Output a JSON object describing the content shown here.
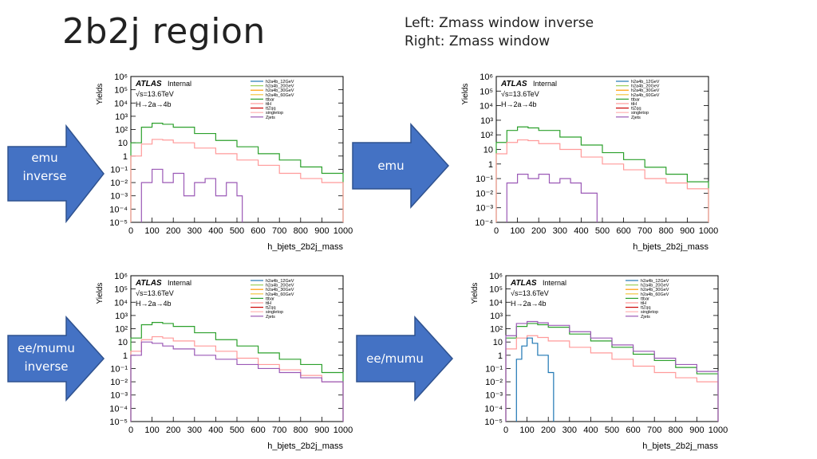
{
  "slide": {
    "title": "2b2j region",
    "note_line1": "Left: Zmass window inverse",
    "note_line2": "Right: Zmass window"
  },
  "arrows": {
    "emu_inverse": [
      "emu",
      "inverse"
    ],
    "emu": [
      "emu"
    ],
    "eemumu_inverse": [
      "ee/mumu",
      "inverse"
    ],
    "eemumu": [
      "ee/mumu"
    ]
  },
  "colors": {
    "arrow_fill": "#4472c4",
    "arrow_stroke": "#2f528f",
    "h2a4b_12GeV": "#1f77b4",
    "h2a4b_20GeV": "#9ccf5a",
    "h2a4b_30GeV": "#ff9900",
    "h2a4b_60GeV": "#f4c542",
    "ttbar": "#2ca02c",
    "ttH": "#ff9a9a",
    "ttZqq": "#cc0000",
    "singletop": "#ffb3b3",
    "Zjets": "#9b59b6"
  },
  "chart_common": {
    "atlas_label": "ATLAS",
    "internal_label": "Internal",
    "energy_label": "√s=13.6TeV",
    "process_label": "H→2a→4b",
    "ylabel": "Yields",
    "xlabel": "h_bjets_2b2j_mass",
    "xticks": [
      "0",
      "100",
      "200",
      "300",
      "400",
      "500",
      "600",
      "700",
      "800",
      "900",
      "1000"
    ],
    "yticks": [
      "10⁻⁵",
      "10⁻⁴",
      "10⁻³",
      "10⁻²",
      "10⁻¹",
      "1",
      "10",
      "10²",
      "10³",
      "10⁴",
      "10⁵",
      "10⁶"
    ],
    "legend": [
      "h2a4b_12GeV",
      "h2a4b_20GeV",
      "h2a4b_30GeV",
      "h2a4b_60GeV",
      "ttbar",
      "ttH",
      "ttZqq",
      "singletop",
      "Zjets"
    ]
  },
  "chart_data": [
    {
      "type": "line",
      "panel": "emu inverse",
      "xlim": [
        0,
        1000
      ],
      "ylim": [
        1e-05,
        1000000.0
      ],
      "log_y": true,
      "xlabel": "h_bjets_2b2j_mass",
      "ylabel": "Yields",
      "series": [
        {
          "name": "ttbar",
          "x": [
            0,
            50,
            100,
            150,
            200,
            300,
            400,
            500,
            600,
            700,
            800,
            900,
            1000
          ],
          "y": [
            10,
            150,
            300,
            250,
            150,
            50,
            15,
            5,
            1.5,
            0.5,
            0.15,
            0.05,
            0.01
          ]
        },
        {
          "name": "ttH",
          "x": [
            0,
            50,
            100,
            150,
            200,
            300,
            400,
            500,
            600,
            700,
            800,
            900,
            1000
          ],
          "y": [
            1,
            8,
            18,
            16,
            10,
            4,
            1.5,
            0.5,
            0.2,
            0.05,
            0.02,
            0.01,
            0.005
          ]
        },
        {
          "name": "Zjets",
          "x": [
            50,
            100,
            150,
            200,
            250,
            300,
            350,
            400,
            450,
            500
          ],
          "y": [
            0.01,
            0.1,
            0.01,
            0.05,
            0.001,
            0.01,
            0.02,
            0.001,
            0.01,
            0.001
          ]
        }
      ]
    },
    {
      "type": "line",
      "panel": "emu",
      "xlim": [
        0,
        1000
      ],
      "ylim": [
        0.0001,
        1000000.0
      ],
      "log_y": true,
      "xlabel": "h_bjets_2b2j_mass",
      "ylabel": "Yields",
      "series": [
        {
          "name": "ttbar",
          "x": [
            0,
            50,
            100,
            150,
            200,
            300,
            400,
            500,
            600,
            700,
            800,
            900,
            1000
          ],
          "y": [
            30,
            200,
            350,
            300,
            200,
            70,
            20,
            6,
            2,
            0.6,
            0.2,
            0.06,
            0.02
          ]
        },
        {
          "name": "ttH",
          "x": [
            0,
            50,
            100,
            150,
            200,
            300,
            400,
            500,
            600,
            700,
            800,
            900,
            1000
          ],
          "y": [
            5,
            30,
            45,
            40,
            25,
            10,
            3,
            1,
            0.4,
            0.1,
            0.05,
            0.02,
            0.01
          ]
        },
        {
          "name": "Zjets",
          "x": [
            50,
            100,
            150,
            200,
            250,
            300,
            350,
            400,
            450
          ],
          "y": [
            0.05,
            0.2,
            0.1,
            0.2,
            0.05,
            0.1,
            0.05,
            0.01,
            0.01
          ]
        }
      ]
    },
    {
      "type": "line",
      "panel": "ee/mumu inverse",
      "xlim": [
        0,
        1000
      ],
      "ylim": [
        1e-05,
        1000000.0
      ],
      "log_y": true,
      "xlabel": "h_bjets_2b2j_mass",
      "ylabel": "Yields",
      "series": [
        {
          "name": "ttbar",
          "x": [
            0,
            50,
            100,
            150,
            200,
            300,
            400,
            500,
            600,
            700,
            800,
            900,
            1000
          ],
          "y": [
            20,
            200,
            300,
            250,
            150,
            50,
            15,
            5,
            1.5,
            0.5,
            0.2,
            0.05,
            0.02
          ]
        },
        {
          "name": "ttH",
          "x": [
            0,
            50,
            100,
            150,
            200,
            300,
            400,
            500,
            600,
            700,
            800,
            900,
            1000
          ],
          "y": [
            2,
            15,
            25,
            20,
            12,
            5,
            2,
            0.6,
            0.2,
            0.08,
            0.03,
            0.01,
            0.005
          ]
        },
        {
          "name": "Zjets",
          "x": [
            0,
            50,
            100,
            150,
            200,
            300,
            400,
            500,
            600,
            700,
            800,
            900,
            1000
          ],
          "y": [
            1,
            10,
            8,
            5,
            3,
            1,
            0.5,
            0.2,
            0.1,
            0.05,
            0.02,
            0.01,
            0.005
          ]
        }
      ]
    },
    {
      "type": "line",
      "panel": "ee/mumu",
      "xlim": [
        0,
        1000
      ],
      "ylim": [
        1e-05,
        1000000.0
      ],
      "log_y": true,
      "xlabel": "h_bjets_2b2j_mass",
      "ylabel": "Yields",
      "series": [
        {
          "name": "ttbar",
          "x": [
            0,
            50,
            100,
            150,
            200,
            300,
            400,
            500,
            600,
            700,
            800,
            900,
            1000
          ],
          "y": [
            20,
            150,
            250,
            200,
            130,
            40,
            12,
            4,
            1.2,
            0.4,
            0.12,
            0.04,
            0.01
          ]
        },
        {
          "name": "ttH",
          "x": [
            0,
            50,
            100,
            150,
            200,
            300,
            400,
            500,
            600,
            700,
            800,
            900,
            1000
          ],
          "y": [
            3,
            20,
            30,
            22,
            12,
            4,
            1.5,
            0.5,
            0.15,
            0.05,
            0.02,
            0.01,
            0.005
          ]
        },
        {
          "name": "Zjets",
          "x": [
            0,
            50,
            100,
            150,
            200,
            300,
            400,
            500,
            600,
            700,
            800,
            900,
            1000
          ],
          "y": [
            30,
            250,
            350,
            280,
            180,
            60,
            20,
            6,
            2,
            0.6,
            0.2,
            0.06,
            0.02
          ]
        },
        {
          "name": "h2a4b_12GeV",
          "x": [
            50,
            75,
            100,
            125,
            150,
            200
          ],
          "y": [
            0.5,
            5,
            20,
            8,
            1,
            0.05
          ]
        }
      ]
    }
  ]
}
